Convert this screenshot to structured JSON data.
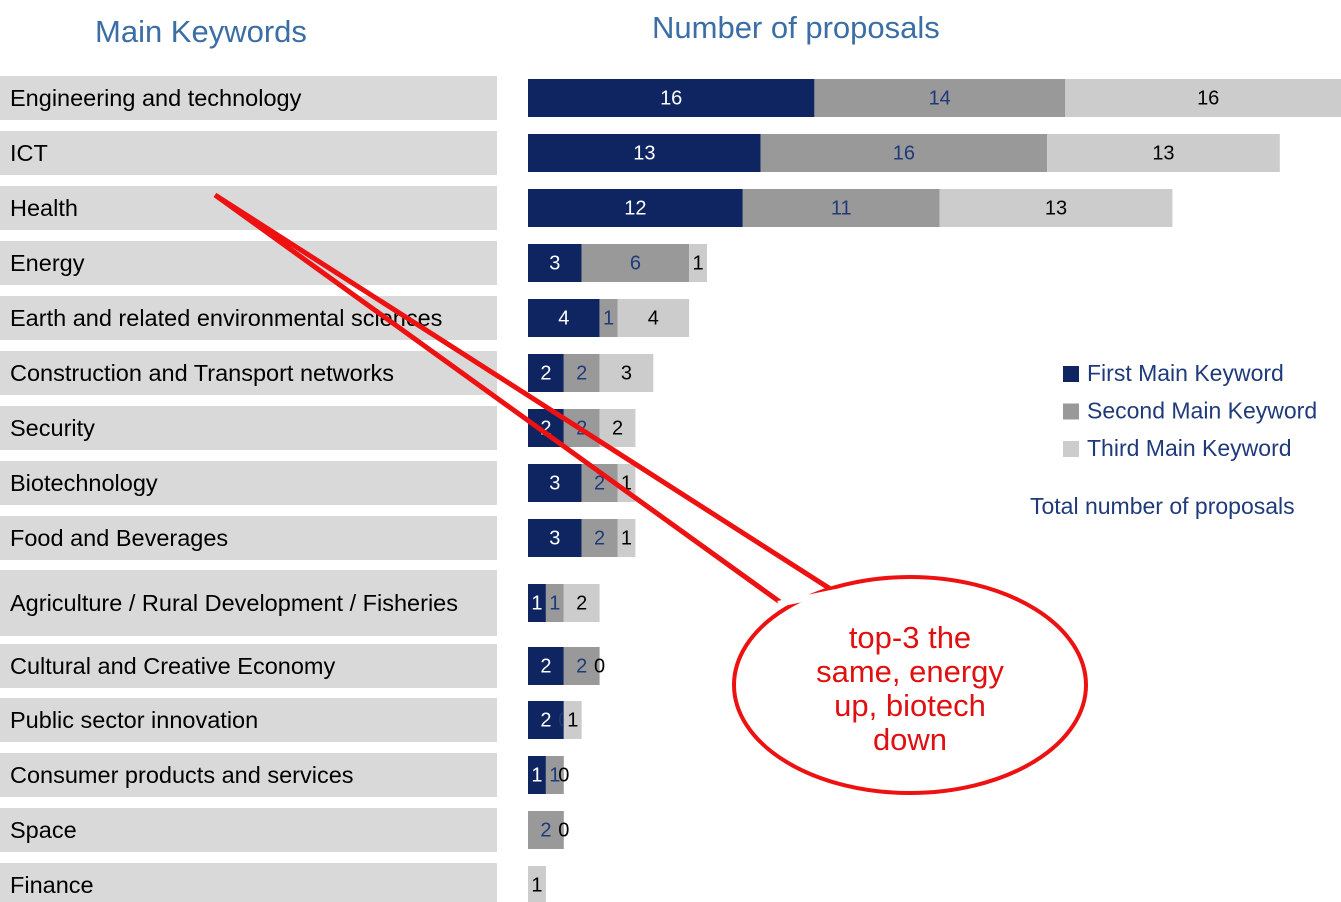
{
  "chart_data": {
    "type": "bar",
    "left_heading": "Main Keywords",
    "title": "Number of proposals",
    "categories": [
      "Engineering and technology",
      "ICT",
      "Health",
      "Energy",
      "Earth and related environmental sciences",
      "Construction and Transport networks",
      "Security",
      "Biotechnology",
      "Food and Beverages",
      "Agriculture / Rural Development / Fisheries",
      "Cultural and Creative Economy",
      "Public sector innovation",
      "Consumer products and services",
      "Space",
      "Finance"
    ],
    "series": [
      {
        "name": "First Main Keyword",
        "color": "#0e2561",
        "label_color": "#ffffff",
        "values": [
          16,
          13,
          12,
          3,
          4,
          2,
          2,
          3,
          3,
          1,
          2,
          2,
          1,
          0,
          0
        ]
      },
      {
        "name": "Second Main Keyword",
        "color": "#999999",
        "label_color": "#1f3a7a",
        "values": [
          14,
          16,
          11,
          6,
          1,
          2,
          2,
          2,
          2,
          1,
          2,
          0,
          1,
          2,
          null
        ]
      },
      {
        "name": "Third Main Keyword",
        "color": "#cccccc",
        "label_color": "#000000",
        "values": [
          16,
          13,
          13,
          1,
          4,
          3,
          2,
          1,
          1,
          2,
          0,
          1,
          0,
          0,
          1
        ]
      }
    ],
    "total_label": "Total number of proposals",
    "annotation": "top-3 the same, energy up, biotech down"
  }
}
